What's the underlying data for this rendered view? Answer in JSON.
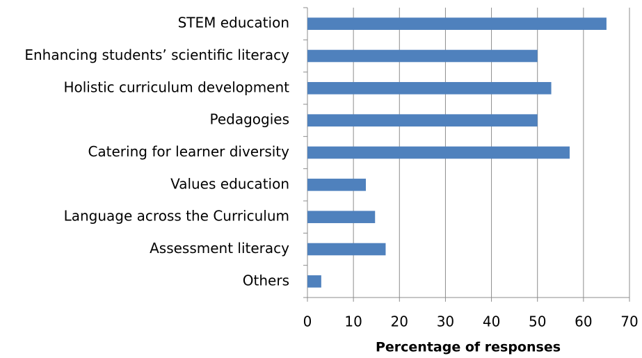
{
  "chart_data": {
    "type": "bar",
    "orientation": "horizontal",
    "x_label": "Percentage of responses",
    "categories": [
      "STEM education",
      "Enhancing students’ scientific literacy",
      "Holistic curriculum development",
      "Pedagogies",
      "Catering for learner diversity",
      "Values education",
      "Language across the Curriculum",
      "Assessment literacy",
      "Others"
    ],
    "values": [
      65,
      50,
      53,
      50,
      57,
      12.7,
      14.7,
      17,
      3
    ],
    "color": "#4f81bd",
    "xlim": [
      0,
      70
    ],
    "xticks": [
      0,
      10,
      20,
      30,
      40,
      50,
      60,
      70
    ],
    "grid": true
  }
}
